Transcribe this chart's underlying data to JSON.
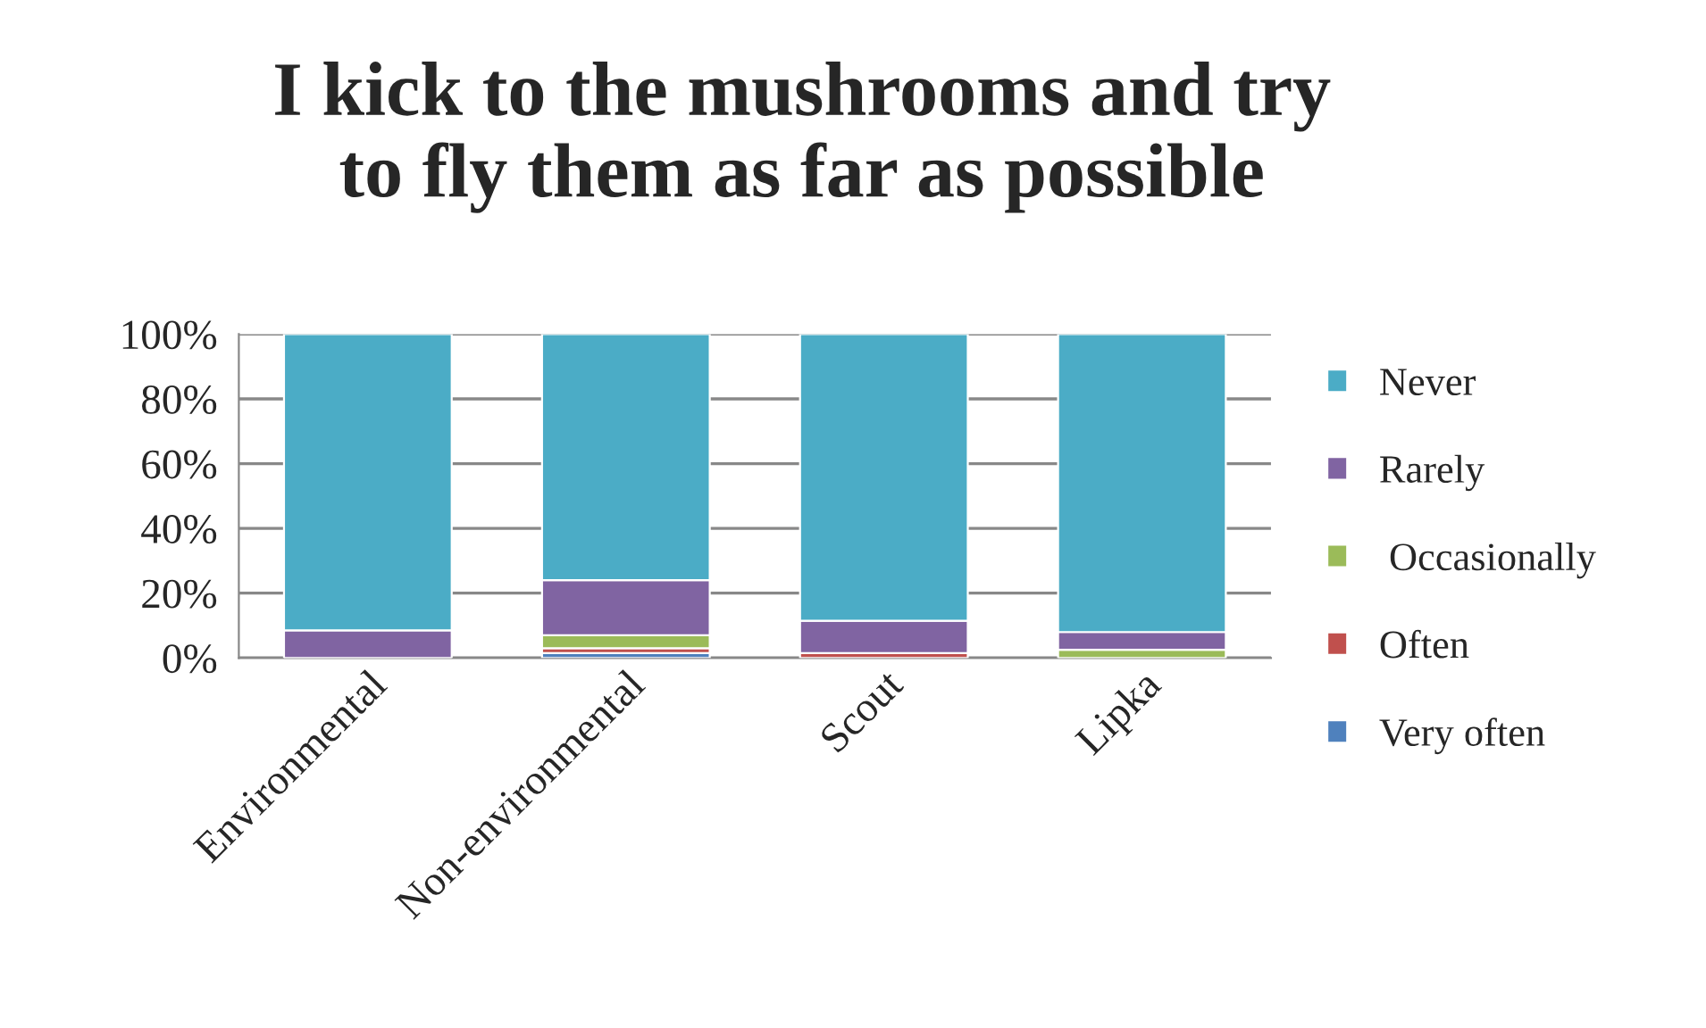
{
  "chart_data": {
    "type": "bar",
    "stacked": true,
    "title": "I kick to the mushrooms and try\nto fly them as far as possible",
    "categories": [
      "Environmental",
      "Non-environmental",
      "Scout",
      "Lipka"
    ],
    "series": [
      {
        "name": "Very often",
        "color": "#4f81bd",
        "values": [
          0,
          1.5,
          0,
          0
        ]
      },
      {
        "name": "Often",
        "color": "#c0504d",
        "values": [
          0,
          1.5,
          1.5,
          0
        ]
      },
      {
        "name": " Occasionally",
        "color": "#9bbb59",
        "values": [
          0,
          4,
          0,
          2.5
        ]
      },
      {
        "name": "Rarely",
        "color": "#8064a2",
        "values": [
          8.5,
          17,
          10,
          5.5
        ]
      },
      {
        "name": "Never",
        "color": "#4bacc6",
        "values": [
          91.5,
          76,
          88.5,
          92
        ]
      }
    ],
    "ylim": [
      0,
      100
    ],
    "yticks": [
      {
        "value": 0,
        "label": "0%"
      },
      {
        "value": 20,
        "label": "20%"
      },
      {
        "value": 40,
        "label": "40%"
      },
      {
        "value": 60,
        "label": "60%"
      },
      {
        "value": 80,
        "label": "80%"
      },
      {
        "value": 100,
        "label": "100%"
      }
    ],
    "grid": "y",
    "legend": "right"
  }
}
